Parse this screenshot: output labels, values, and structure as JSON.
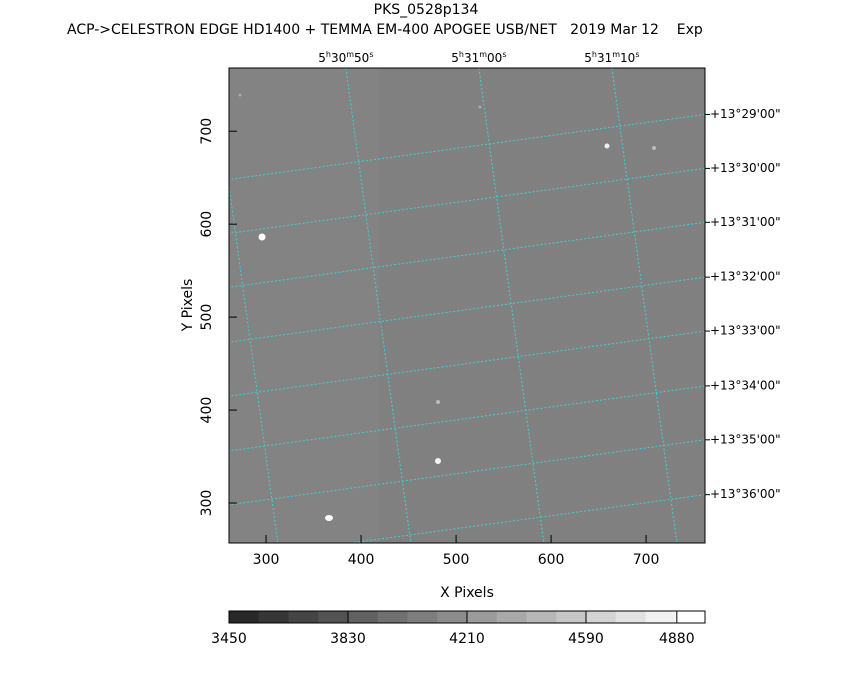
{
  "chart_data": {
    "type": "image",
    "title": "PKS_0528p134",
    "subtitle": "ACP->CELESTRON EDGE HD1400 + TEMMA EM-400 APOGEE USB/NET   2019 Mar 12    Exp",
    "xlabel": "X Pixels",
    "ylabel": "Y Pixels",
    "xlim": [
      261,
      762
    ],
    "ylim": [
      257,
      768
    ],
    "xticks": [
      300,
      400,
      500,
      600,
      700
    ],
    "yticks": [
      300,
      400,
      500,
      600,
      700
    ],
    "ra_ticks": [
      {
        "value": 384,
        "label": [
          "5",
          "h",
          "30",
          "m",
          "50",
          "s"
        ]
      },
      {
        "value": 524,
        "label": [
          "5",
          "h",
          "31",
          "m",
          "00",
          "s"
        ]
      },
      {
        "value": 664,
        "label": [
          "5",
          "h",
          "31",
          "m",
          "10",
          "s"
        ]
      }
    ],
    "dec_ticks": [
      {
        "value": 718,
        "label": "+13°29'00\""
      },
      {
        "value": 660,
        "label": "+13°30'00\""
      },
      {
        "value": 602,
        "label": "+13°31'00\""
      },
      {
        "value": 543,
        "label": "+13°32'00\""
      },
      {
        "value": 485,
        "label": "+13°33'00\""
      },
      {
        "value": 426,
        "label": "+13°34'00\""
      },
      {
        "value": 368,
        "label": "+13°35'00\""
      },
      {
        "value": 309,
        "label": "+13°36'00\""
      }
    ],
    "grid_color": "#40d0d0",
    "colorbar": {
      "lim": [
        3450,
        4970
      ],
      "ticks": [
        3450,
        3830,
        4210,
        4590,
        4880
      ]
    }
  }
}
